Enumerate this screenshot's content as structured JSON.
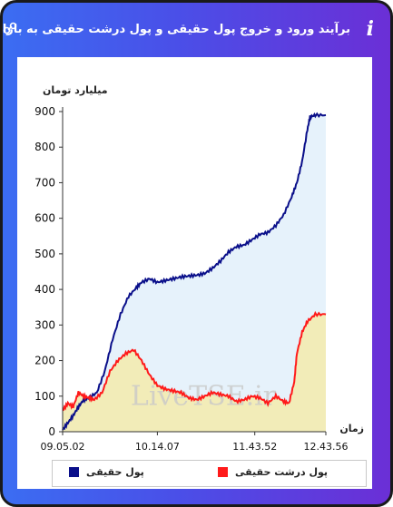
{
  "header": {
    "title": "برآیند ورود و خروج پول حقیقی و پول درشت حقیقی به بازار",
    "info_icon": "i"
  },
  "chart_data": {
    "type": "area",
    "ylabel": "میلیارد تومان",
    "xlabel": "زمان",
    "ylim": [
      0,
      900
    ],
    "yticks": [
      "0",
      "100",
      "200",
      "300",
      "400",
      "500",
      "600",
      "700",
      "800",
      "900"
    ],
    "xticks": [
      "09.05.02",
      "10.14.07",
      "11.43.52",
      "12.43.56"
    ],
    "watermark": "LiveTSE.ir",
    "series": [
      {
        "name": "پول حقیقی",
        "color": "#0a0f8a",
        "fill": "#e6f2fb",
        "x": [
          0,
          0.02,
          0.04,
          0.06,
          0.08,
          0.1,
          0.13,
          0.16,
          0.19,
          0.22,
          0.25,
          0.28,
          0.3,
          0.33,
          0.36,
          0.39,
          0.42,
          0.45,
          0.48,
          0.51,
          0.54,
          0.57,
          0.6,
          0.63,
          0.66,
          0.69,
          0.72,
          0.75,
          0.78,
          0.81,
          0.84,
          0.87,
          0.89,
          0.91,
          0.93,
          0.94,
          0.96,
          1.0
        ],
        "values": [
          5,
          25,
          45,
          70,
          90,
          95,
          110,
          170,
          260,
          330,
          380,
          405,
          420,
          430,
          420,
          425,
          430,
          435,
          438,
          440,
          445,
          460,
          480,
          505,
          520,
          525,
          540,
          555,
          560,
          580,
          610,
          660,
          700,
          760,
          850,
          885,
          890,
          890
        ]
      },
      {
        "name": "پول درشت حقیقی",
        "color": "#ff1a1a",
        "fill": "#f2ecb8",
        "x": [
          0,
          0.02,
          0.04,
          0.06,
          0.08,
          0.1,
          0.12,
          0.15,
          0.18,
          0.21,
          0.24,
          0.27,
          0.3,
          0.33,
          0.36,
          0.39,
          0.42,
          0.45,
          0.48,
          0.51,
          0.54,
          0.57,
          0.6,
          0.63,
          0.66,
          0.69,
          0.72,
          0.75,
          0.78,
          0.81,
          0.84,
          0.86,
          0.88,
          0.89,
          0.91,
          0.93,
          0.96,
          1.0
        ],
        "values": [
          60,
          80,
          70,
          110,
          100,
          95,
          90,
          110,
          170,
          200,
          220,
          230,
          200,
          160,
          130,
          120,
          115,
          110,
          95,
          90,
          100,
          110,
          105,
          100,
          85,
          90,
          100,
          95,
          80,
          100,
          85,
          80,
          140,
          220,
          280,
          310,
          330,
          330
        ]
      }
    ]
  }
}
